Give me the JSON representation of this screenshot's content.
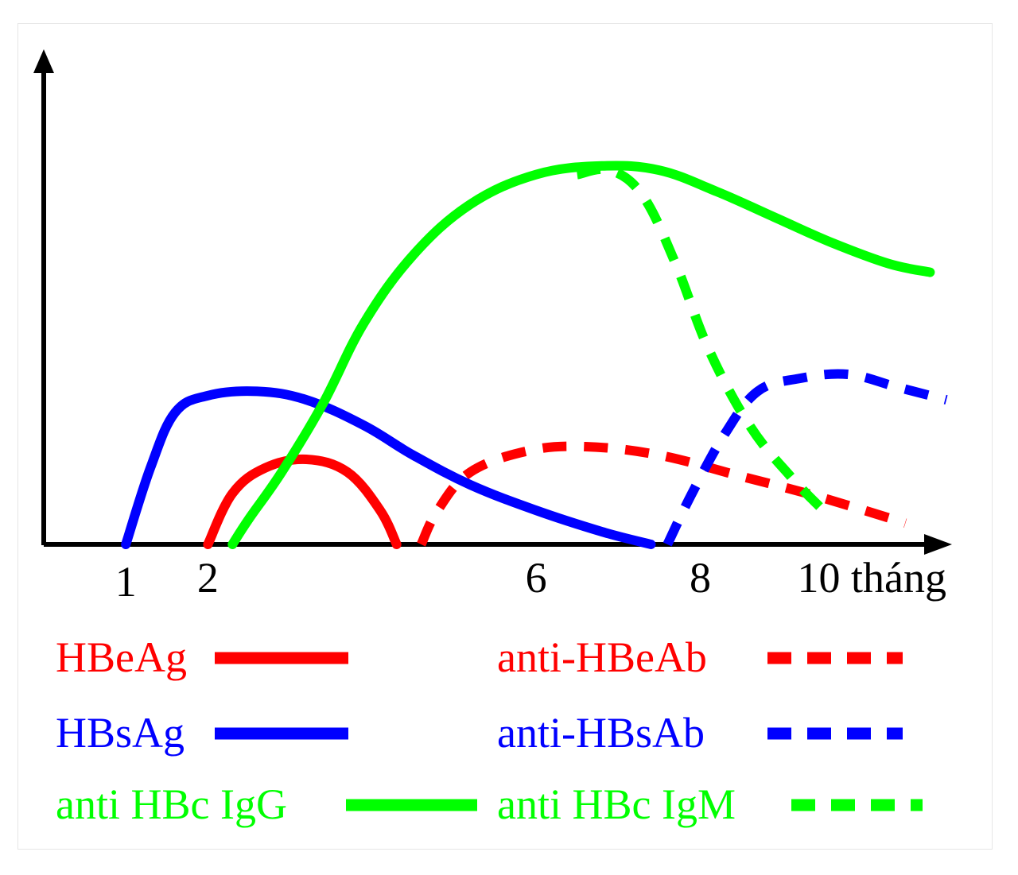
{
  "chart_data": {
    "type": "line",
    "title": "",
    "xlabel": "tháng",
    "ylabel": "",
    "xlim": [
      0,
      11
    ],
    "ylim": [
      0,
      1
    ],
    "grid": false,
    "x_ticks": [
      {
        "value": 1,
        "label": "1"
      },
      {
        "value": 2,
        "label": "2"
      },
      {
        "value": 6,
        "label": "6"
      },
      {
        "value": 8,
        "label": "8"
      },
      {
        "value": 10,
        "label": "10 tháng"
      }
    ],
    "legend": {
      "placement": "bottom",
      "columns": 2
    },
    "series": [
      {
        "name": "HBeAg",
        "color": "#ff0000",
        "style": "solid",
        "x": [
          2.0,
          2.3,
          2.7,
          3.2,
          3.7,
          4.1,
          4.3
        ],
        "y": [
          0.0,
          0.12,
          0.18,
          0.2,
          0.17,
          0.08,
          0.0
        ]
      },
      {
        "name": "anti-HBeAb",
        "color": "#ff0000",
        "style": "dashed",
        "x": [
          4.6,
          4.8,
          5.2,
          5.9,
          6.6,
          7.5,
          8.5,
          9.3,
          10.0,
          10.5
        ],
        "y": [
          0.0,
          0.08,
          0.17,
          0.22,
          0.23,
          0.21,
          0.16,
          0.12,
          0.08,
          0.05
        ]
      },
      {
        "name": "HBsAg",
        "color": "#0000ff",
        "style": "solid",
        "x": [
          1.0,
          1.3,
          1.6,
          2.0,
          2.6,
          3.2,
          3.9,
          4.5,
          5.2,
          6.0,
          6.8,
          7.4
        ],
        "y": [
          0.0,
          0.18,
          0.31,
          0.35,
          0.36,
          0.34,
          0.28,
          0.21,
          0.14,
          0.08,
          0.03,
          0.0
        ]
      },
      {
        "name": "anti-HBsAb",
        "color": "#0000ff",
        "style": "dashed",
        "x": [
          7.6,
          7.9,
          8.3,
          8.7,
          9.2,
          9.8,
          10.4,
          11.0
        ],
        "y": [
          0.0,
          0.12,
          0.26,
          0.36,
          0.39,
          0.4,
          0.37,
          0.34
        ]
      },
      {
        "name": "anti HBc IgG",
        "color": "#00ff00",
        "style": "solid",
        "x": [
          2.3,
          2.5,
          2.9,
          3.4,
          3.9,
          4.5,
          5.2,
          6.0,
          6.8,
          7.5,
          8.2,
          8.9,
          9.6,
          10.3,
          10.8
        ],
        "y": [
          0.0,
          0.06,
          0.17,
          0.33,
          0.52,
          0.68,
          0.8,
          0.87,
          0.89,
          0.88,
          0.83,
          0.77,
          0.71,
          0.66,
          0.64
        ]
      },
      {
        "name": "anti HBc IgM",
        "color": "#00ff00",
        "style": "dashed",
        "x": [
          6.5,
          6.9,
          7.3,
          7.7,
          8.1,
          8.6,
          9.1,
          9.5
        ],
        "y": [
          0.87,
          0.88,
          0.82,
          0.66,
          0.46,
          0.28,
          0.16,
          0.08
        ]
      }
    ]
  }
}
